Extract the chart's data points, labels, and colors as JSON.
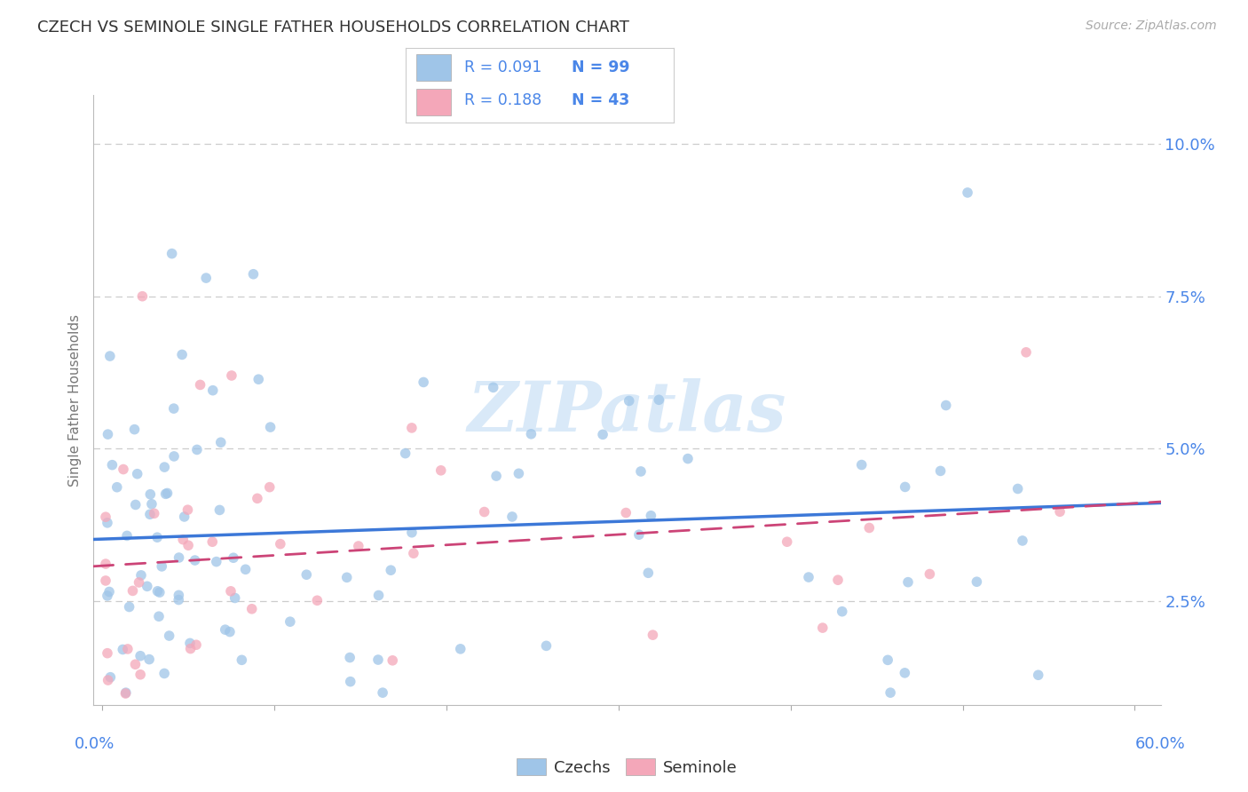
{
  "title": "CZECH VS SEMINOLE SINGLE FATHER HOUSEHOLDS CORRELATION CHART",
  "source": "Source: ZipAtlas.com",
  "ylabel": "Single Father Households",
  "y_ticks": [
    0.025,
    0.05,
    0.075,
    0.1
  ],
  "y_tick_labels": [
    "2.5%",
    "5.0%",
    "7.5%",
    "10.0%"
  ],
  "xlim": [
    -0.005,
    0.615
  ],
  "ylim": [
    0.008,
    0.108
  ],
  "czech_R": 0.091,
  "czech_N": 99,
  "seminole_R": 0.188,
  "seminole_N": 43,
  "czech_color": "#9fc5e8",
  "seminole_color": "#f4a7b9",
  "czech_line_color": "#3c78d8",
  "seminole_line_color": "#cc4477",
  "bg_color": "#ffffff",
  "grid_color": "#cccccc",
  "title_color": "#333333",
  "watermark_color": "#ddeeff",
  "legend_color": "#4a86e8",
  "legend_N_color": "#cc0000",
  "yticklabel_color": "#4a86e8",
  "xlabel_color": "#4a86e8"
}
